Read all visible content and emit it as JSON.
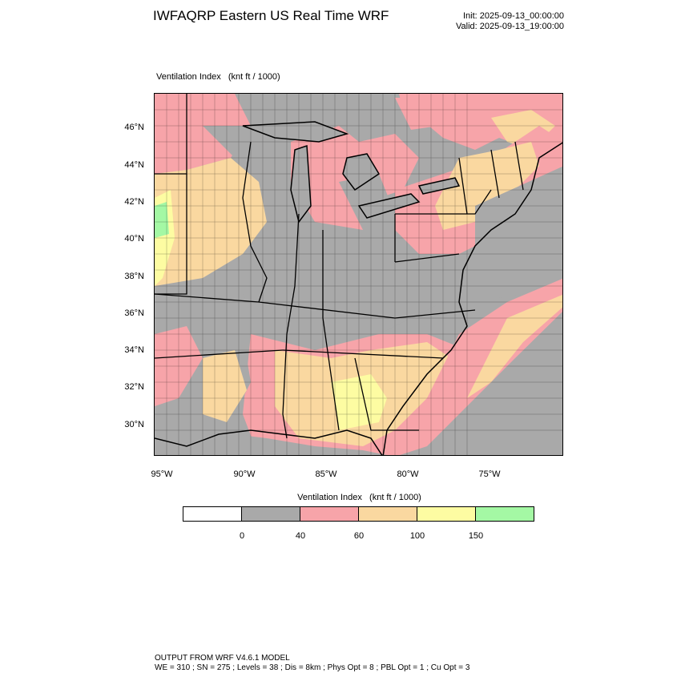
{
  "header": {
    "title": "IWFAQRP Eastern US Real Time WRF",
    "init": "Init: 2025-09-13_00:00:00",
    "valid": "Valid: 2025-09-13_19:00:00"
  },
  "field_label": "Ventilation Index   (knt ft / 1000)",
  "map": {
    "lat_labels": [
      "46°N",
      "44°N",
      "42°N",
      "40°N",
      "38°N",
      "36°N",
      "34°N",
      "32°N",
      "30°N"
    ],
    "lon_labels": [
      "95°W",
      "90°W",
      "85°W",
      "80°W",
      "75°W"
    ],
    "colors": {
      "0-40": "#a9a9a9",
      "40-60": "#f7a4a9",
      "60-100": "#fad8a0",
      "100-150": "#fdfca2",
      "150+": "#a4f8a4"
    }
  },
  "legend": {
    "title": "Ventilation Index   (knt ft / 1000)",
    "swatch_colors": [
      "#ffffff",
      "#a9a9a9",
      "#f7a4a9",
      "#fad8a0",
      "#fdfca2",
      "#a4f8a4"
    ],
    "labels": [
      "0",
      "40",
      "60",
      "100",
      "150"
    ]
  },
  "footer": {
    "line1": "OUTPUT FROM WRF V4.6.1 MODEL",
    "line2": "WE = 310 ; SN = 275 ; Levels = 38 ; Dis = 8km ; Phys Opt = 8 ; PBL Opt = 1 ; Cu Opt = 3"
  }
}
